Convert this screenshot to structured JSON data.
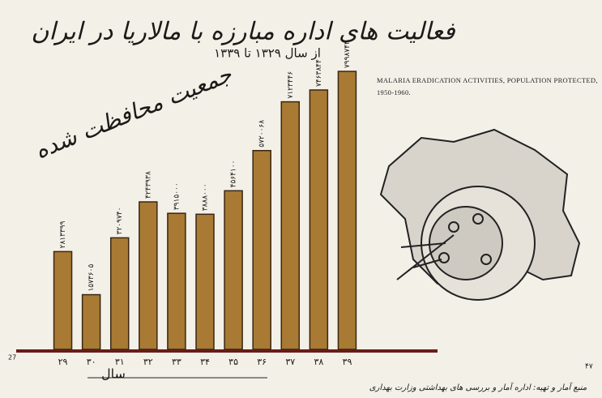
{
  "chart_data": {
    "type": "bar",
    "title": "فعالیت های اداره مبارزه با مالاریا در ایران",
    "subtitle": "از سال ۱۳۲۹ تا ۱۳۳۹",
    "y_label": "جمعیت محافظت شده",
    "x_label": "سال",
    "caption": "MALARIA ERADICATION ACTIVITIES, POPULATION PROTECTED, 1950-1960.",
    "source": "منبع آمار و تهیه: اداره آمار و بررسی های بهداشتی وزارت بهداری",
    "page_left": "27",
    "page_right": "۴۷",
    "categories": [
      "۲۹",
      "۳۰",
      "۳۱",
      "۳۲",
      "۳۳",
      "۳۴",
      "۳۵",
      "۳۶",
      "۳۷",
      "۳۸",
      "۳۹"
    ],
    "values": [
      2813399,
      1573605,
      3209740,
      4243938,
      3915000,
      3888000,
      4564100,
      5720068,
      7123446,
      7463844,
      7998744
    ],
    "value_labels": [
      "۲۸۱۳۳۹۹",
      "۱۵۷۳۶۰۵",
      "۳۲۰۹۷۴۰",
      "۴۲۴۳۹۳۸",
      "۳۹۱۵۰۰۰",
      "۳۸۸۸۰۰۰",
      "۴۵۶۴۱۰۰",
      "۵۷۲۰۰۶۸",
      "۷۱۲۳۴۴۶",
      "۷۴۶۳۸۴۴",
      "۷۹۹۸۷۴۴"
    ],
    "color": "#a87a34",
    "ylim": [
      0,
      8000000
    ]
  }
}
